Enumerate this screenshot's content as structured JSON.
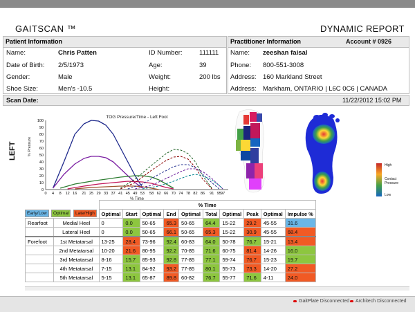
{
  "header": {
    "app_title": "GAITSCAN ™",
    "report_title": "DYNAMIC REPORT"
  },
  "patient": {
    "heading": "Patient Information",
    "name_label": "Name:",
    "name": "Chris Patten",
    "dob_label": "Date of Birth:",
    "dob": "2/5/1973",
    "gender_label": "Gender:",
    "gender": "Male",
    "shoe_label": "Shoe Size:",
    "shoe": "Men's -10.5",
    "id_label": "ID Number:",
    "id": "111111",
    "age_label": "Age:",
    "age": "39",
    "weight_label": "Weight:",
    "weight": "200  lbs",
    "height_label": "Height:",
    "height": ""
  },
  "practitioner": {
    "heading": "Practitioner Information",
    "account": "Account # 0926",
    "name_label": "Name:",
    "name": "zeeshan faisal",
    "phone_label": "Phone:",
    "phone": "800-551-3008",
    "address_label": "Address:",
    "address1": "160 Markland Street",
    "address2_label": "Address:",
    "address2": "Markham, ONTARIO | L6C 0C6 | CANADA"
  },
  "scan": {
    "label": "Scan Date:",
    "value": "11/22/2012 15:02 PM"
  },
  "side_label": "LEFT",
  "chart_data": {
    "type": "line",
    "title": "TOG Pressure/Time - Left Foot",
    "xlabel": "% Time",
    "ylabel": "% Pressure",
    "ylim": [
      0,
      100
    ],
    "y_ticks": [
      0,
      10,
      20,
      30,
      40,
      50,
      60,
      70,
      80,
      90,
      100
    ],
    "x_ticks": [
      0,
      4,
      8,
      12,
      16,
      21,
      25,
      29,
      33,
      37,
      41,
      45,
      49,
      53,
      58,
      62,
      66,
      70,
      74,
      78,
      82,
      86,
      91,
      95,
      97
    ],
    "series": [
      {
        "color": "#1f2a8c",
        "dash": false,
        "x": [
          4,
          10,
          16,
          21,
          25,
          29,
          33,
          37,
          41,
          45,
          49,
          53
        ],
        "y": [
          2,
          40,
          80,
          95,
          100,
          99,
          93,
          80,
          60,
          40,
          20,
          3
        ]
      },
      {
        "color": "#7b1fa2",
        "dash": false,
        "x": [
          4,
          10,
          16,
          21,
          25,
          29,
          33,
          37,
          41,
          45,
          49,
          53
        ],
        "y": [
          2,
          22,
          37,
          45,
          48,
          48,
          46,
          40,
          30,
          20,
          10,
          2
        ]
      },
      {
        "color": "#2e7d32",
        "dash": false,
        "x": [
          8,
          16,
          25,
          33,
          41,
          49,
          53,
          58,
          62,
          66,
          70
        ],
        "y": [
          2,
          8,
          12,
          15,
          18,
          20,
          20,
          18,
          14,
          8,
          2
        ]
      },
      {
        "color": "#c2185b",
        "dash": false,
        "x": [
          12,
          21,
          29,
          37,
          45,
          53,
          58,
          62,
          66,
          70
        ],
        "y": [
          1,
          5,
          8,
          10,
          12,
          11,
          9,
          6,
          3,
          1
        ]
      },
      {
        "color": "#a0522d",
        "dash": false,
        "x": [
          16,
          25,
          33,
          41,
          49,
          53,
          58,
          62
        ],
        "y": [
          1,
          3,
          4,
          5,
          5,
          4,
          2,
          0
        ]
      },
      {
        "color": "#1b5e20",
        "dash": true,
        "x": [
          41,
          49,
          58,
          66,
          70,
          74,
          78,
          82,
          86,
          91
        ],
        "y": [
          2,
          15,
          35,
          52,
          58,
          57,
          52,
          40,
          20,
          2
        ]
      },
      {
        "color": "#8b0000",
        "dash": true,
        "x": [
          41,
          49,
          58,
          66,
          70,
          74,
          78,
          82,
          86,
          91
        ],
        "y": [
          1,
          10,
          28,
          42,
          47,
          48,
          44,
          32,
          15,
          1
        ]
      },
      {
        "color": "#283593",
        "dash": true,
        "x": [
          45,
          53,
          62,
          70,
          74,
          78,
          82,
          86,
          91,
          95
        ],
        "y": [
          1,
          8,
          22,
          33,
          36,
          36,
          32,
          22,
          10,
          1
        ]
      },
      {
        "color": "#6a1b9a",
        "dash": true,
        "x": [
          49,
          58,
          66,
          74,
          78,
          82,
          86,
          91,
          95,
          97
        ],
        "y": [
          1,
          6,
          16,
          26,
          30,
          30,
          26,
          16,
          6,
          1
        ]
      },
      {
        "color": "#00838f",
        "dash": true,
        "x": [
          53,
          62,
          70,
          78,
          82,
          86,
          91,
          95,
          97
        ],
        "y": [
          1,
          5,
          12,
          20,
          22,
          20,
          14,
          6,
          1
        ]
      }
    ]
  },
  "contact_legend": {
    "high": "High",
    "mid": "Contact Pressure",
    "low": "Low"
  },
  "legend": {
    "early": "Early/Low",
    "optimal": "Optimal",
    "late": "Late/High"
  },
  "table": {
    "group_header": "% Time",
    "columns": [
      "Optimal",
      "Start",
      "Optimal",
      "End",
      "Optimal",
      "Total",
      "Optimal",
      "Peak",
      "Optimal",
      "Impulse %"
    ],
    "sections": [
      {
        "name": "Rearfoot",
        "rows": [
          {
            "label": "Medial Heel",
            "cells": [
              [
                "0",
                ""
              ],
              [
                "0.0",
                "g"
              ],
              [
                "50-65",
                ""
              ],
              [
                "65.3",
                "o"
              ],
              [
                "50-65",
                ""
              ],
              [
                "64.4",
                "g"
              ],
              [
                "15-22",
                ""
              ],
              [
                "29.2",
                "o"
              ],
              [
                "45-55",
                ""
              ],
              [
                "31.6",
                "bl"
              ]
            ]
          },
          {
            "label": "Lateral Heel",
            "cells": [
              [
                "0",
                ""
              ],
              [
                "0.0",
                "g"
              ],
              [
                "50-65",
                ""
              ],
              [
                "66.1",
                "o"
              ],
              [
                "50-65",
                ""
              ],
              [
                "65.3",
                "o"
              ],
              [
                "15-22",
                ""
              ],
              [
                "30.9",
                "o"
              ],
              [
                "45-55",
                ""
              ],
              [
                "68.4",
                "o"
              ]
            ]
          }
        ]
      },
      {
        "name": "Forefoot",
        "rows": [
          {
            "label": "1st Metatarsal",
            "cells": [
              [
                "13-25",
                ""
              ],
              [
                "28.4",
                "o"
              ],
              [
                "73-96",
                ""
              ],
              [
                "92.4",
                "g"
              ],
              [
                "60-83",
                ""
              ],
              [
                "64.0",
                "g"
              ],
              [
                "50-78",
                ""
              ],
              [
                "76.7",
                "g"
              ],
              [
                "15-21",
                ""
              ],
              [
                "13.4",
                "o"
              ]
            ]
          },
          {
            "label": "2nd Metatarsal",
            "cells": [
              [
                "10-20",
                ""
              ],
              [
                "21.6",
                "o"
              ],
              [
                "80-95",
                ""
              ],
              [
                "92.2",
                "g"
              ],
              [
                "70-85",
                ""
              ],
              [
                "71.6",
                "g"
              ],
              [
                "60-75",
                ""
              ],
              [
                "81.4",
                "o"
              ],
              [
                "14-26",
                ""
              ],
              [
                "16.0",
                "g"
              ]
            ]
          },
          {
            "label": "3rd Metatarsal",
            "cells": [
              [
                "8-16",
                ""
              ],
              [
                "15.7",
                "g"
              ],
              [
                "85-93",
                ""
              ],
              [
                "92.8",
                "g"
              ],
              [
                "77-85",
                ""
              ],
              [
                "77.1",
                "g"
              ],
              [
                "59-74",
                ""
              ],
              [
                "76.7",
                "o"
              ],
              [
                "15-23",
                ""
              ],
              [
                "19.7",
                "g"
              ]
            ]
          },
          {
            "label": "4th Metatarsal",
            "cells": [
              [
                "7-15",
                ""
              ],
              [
                "13.1",
                "g"
              ],
              [
                "84-92",
                ""
              ],
              [
                "93.2",
                "o"
              ],
              [
                "77-85",
                ""
              ],
              [
                "80.1",
                "g"
              ],
              [
                "55-73",
                ""
              ],
              [
                "73.3",
                "o"
              ],
              [
                "14-20",
                ""
              ],
              [
                "27.2",
                "o"
              ]
            ]
          },
          {
            "label": "5th Metatarsal",
            "cells": [
              [
                "5-15",
                ""
              ],
              [
                "13.1",
                "g"
              ],
              [
                "65-87",
                ""
              ],
              [
                "89.8",
                "o"
              ],
              [
                "60-82",
                ""
              ],
              [
                "76.7",
                "g"
              ],
              [
                "55-77",
                ""
              ],
              [
                "71.6",
                "g"
              ],
              [
                "4-11",
                ""
              ],
              [
                "24.0",
                "o"
              ]
            ]
          }
        ]
      }
    ]
  },
  "status": {
    "gaitplate": "GaitPlate Disconnected",
    "architech": "Architech Disconnected"
  }
}
